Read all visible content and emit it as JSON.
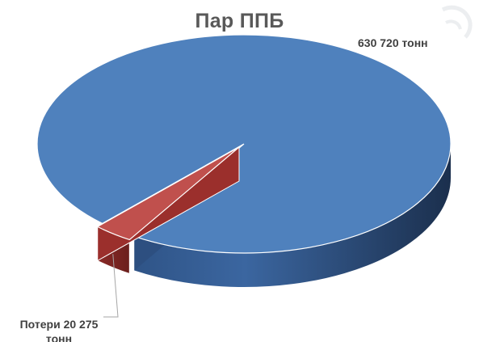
{
  "chart_data": {
    "type": "pie",
    "title": "Пар ППБ",
    "labels": [
      {
        "text": "630 720 тонн"
      },
      {
        "lines": [
          "Потери 20 275",
          "тонн"
        ]
      }
    ],
    "series": [
      {
        "values": [
          630720,
          20275
        ],
        "colors": [
          "#4f81bd",
          "#c0504d"
        ]
      }
    ],
    "style": "3d-exploded"
  },
  "watermark": {
    "icon": "curved-arrow-watermark-icon"
  }
}
